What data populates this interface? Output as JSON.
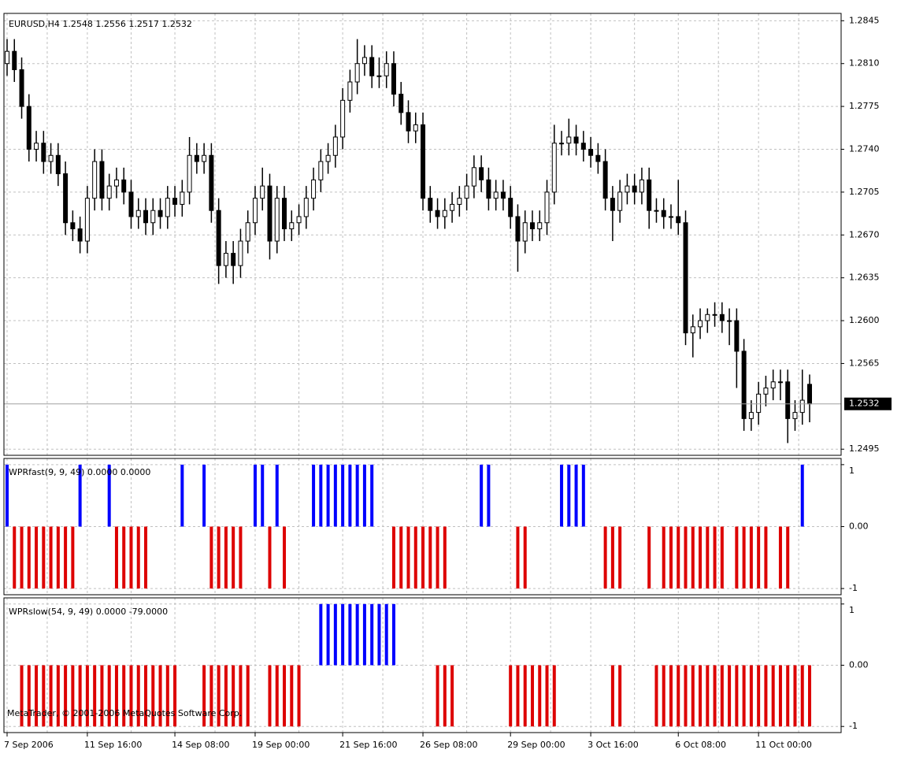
{
  "chart_data": [
    {
      "type": "candlestick",
      "title": "EURUSD,H4  1.2548 1.2556 1.2517 1.2532",
      "categories": [
        "7 Sep 2006",
        null,
        null,
        null,
        null,
        null,
        null,
        null,
        null,
        null,
        null,
        "11 Sep 16:00",
        null,
        null,
        null,
        null,
        null,
        null,
        null,
        null,
        null,
        null,
        null,
        "14 Sep 08:00",
        null,
        null,
        null,
        null,
        null,
        null,
        null,
        null,
        null,
        null,
        "19 Sep 00:00",
        null,
        null,
        null,
        null,
        null,
        null,
        null,
        null,
        null,
        null,
        null,
        "21 Sep 16:00",
        null,
        null,
        null,
        null,
        null,
        null,
        null,
        null,
        null,
        null,
        "26 Sep 08:00",
        null,
        null,
        null,
        null,
        null,
        null,
        null,
        null,
        null,
        null,
        null,
        "29 Sep 00:00",
        null,
        null,
        null,
        null,
        null,
        null,
        null,
        null,
        null,
        null,
        "3 Oct 16:00",
        null,
        null,
        null,
        null,
        null,
        null,
        null,
        null,
        null,
        null,
        null,
        "6 Oct 08:00",
        null,
        null,
        null,
        null,
        null,
        null,
        null,
        null,
        null,
        null,
        "11 Oct 00:00",
        null,
        null,
        null,
        null,
        null,
        null,
        null
      ],
      "ohlc": [
        [
          1.281,
          1.283,
          1.28,
          1.282
        ],
        [
          1.282,
          1.283,
          1.2795,
          1.2805
        ],
        [
          1.2805,
          1.2815,
          1.2765,
          1.2775
        ],
        [
          1.2775,
          1.2785,
          1.273,
          1.274
        ],
        [
          1.274,
          1.2755,
          1.273,
          1.2745
        ],
        [
          1.2745,
          1.2755,
          1.272,
          1.273
        ],
        [
          1.273,
          1.2745,
          1.272,
          1.2735
        ],
        [
          1.2735,
          1.2745,
          1.271,
          1.272
        ],
        [
          1.272,
          1.273,
          1.267,
          1.268
        ],
        [
          1.268,
          1.269,
          1.2665,
          1.2675
        ],
        [
          1.2675,
          1.2685,
          1.2655,
          1.2665
        ],
        [
          1.2665,
          1.271,
          1.2655,
          1.27
        ],
        [
          1.27,
          1.274,
          1.269,
          1.273
        ],
        [
          1.273,
          1.274,
          1.269,
          1.27
        ],
        [
          1.27,
          1.272,
          1.269,
          1.271
        ],
        [
          1.271,
          1.2725,
          1.27,
          1.2715
        ],
        [
          1.2715,
          1.2725,
          1.2695,
          1.2705
        ],
        [
          1.2705,
          1.2715,
          1.2675,
          1.2685
        ],
        [
          1.2685,
          1.27,
          1.2675,
          1.269
        ],
        [
          1.269,
          1.27,
          1.267,
          1.268
        ],
        [
          1.268,
          1.27,
          1.267,
          1.269
        ],
        [
          1.269,
          1.27,
          1.2675,
          1.2685
        ],
        [
          1.2685,
          1.271,
          1.2675,
          1.27
        ],
        [
          1.27,
          1.271,
          1.2685,
          1.2695
        ],
        [
          1.2695,
          1.2715,
          1.2685,
          1.2705
        ],
        [
          1.2705,
          1.275,
          1.2695,
          1.2735
        ],
        [
          1.2735,
          1.2745,
          1.272,
          1.273
        ],
        [
          1.273,
          1.2745,
          1.272,
          1.2735
        ],
        [
          1.2735,
          1.2745,
          1.268,
          1.269
        ],
        [
          1.269,
          1.27,
          1.263,
          1.2645
        ],
        [
          1.2645,
          1.2665,
          1.2635,
          1.2655
        ],
        [
          1.2655,
          1.2665,
          1.263,
          1.2645
        ],
        [
          1.2645,
          1.2675,
          1.2635,
          1.2665
        ],
        [
          1.2665,
          1.269,
          1.2655,
          1.268
        ],
        [
          1.268,
          1.271,
          1.267,
          1.27
        ],
        [
          1.27,
          1.2725,
          1.269,
          1.271
        ],
        [
          1.271,
          1.272,
          1.265,
          1.2665
        ],
        [
          1.2665,
          1.271,
          1.2655,
          1.27
        ],
        [
          1.27,
          1.271,
          1.2665,
          1.2675
        ],
        [
          1.2675,
          1.269,
          1.2665,
          1.268
        ],
        [
          1.268,
          1.2695,
          1.267,
          1.2685
        ],
        [
          1.2685,
          1.271,
          1.2675,
          1.27
        ],
        [
          1.27,
          1.2725,
          1.269,
          1.2715
        ],
        [
          1.2715,
          1.274,
          1.2705,
          1.273
        ],
        [
          1.273,
          1.2745,
          1.272,
          1.2735
        ],
        [
          1.2735,
          1.276,
          1.2725,
          1.275
        ],
        [
          1.275,
          1.279,
          1.274,
          1.278
        ],
        [
          1.278,
          1.2805,
          1.277,
          1.2795
        ],
        [
          1.2795,
          1.283,
          1.2785,
          1.281
        ],
        [
          1.281,
          1.2825,
          1.28,
          1.2815
        ],
        [
          1.2815,
          1.2825,
          1.279,
          1.28
        ],
        [
          1.28,
          1.2815,
          1.279,
          1.28
        ],
        [
          1.28,
          1.282,
          1.279,
          1.281
        ],
        [
          1.281,
          1.282,
          1.2775,
          1.2785
        ],
        [
          1.2785,
          1.2795,
          1.276,
          1.277
        ],
        [
          1.277,
          1.278,
          1.2745,
          1.2755
        ],
        [
          1.2755,
          1.277,
          1.2745,
          1.276
        ],
        [
          1.276,
          1.277,
          1.269,
          1.27
        ],
        [
          1.27,
          1.271,
          1.268,
          1.269
        ],
        [
          1.269,
          1.27,
          1.2675,
          1.2685
        ],
        [
          1.2685,
          1.27,
          1.2675,
          1.269
        ],
        [
          1.269,
          1.2705,
          1.268,
          1.2695
        ],
        [
          1.2695,
          1.271,
          1.2685,
          1.27
        ],
        [
          1.27,
          1.272,
          1.269,
          1.271
        ],
        [
          1.271,
          1.2735,
          1.27,
          1.2725
        ],
        [
          1.2725,
          1.2735,
          1.2705,
          1.2715
        ],
        [
          1.2715,
          1.2725,
          1.269,
          1.27
        ],
        [
          1.27,
          1.2715,
          1.269,
          1.2705
        ],
        [
          1.2705,
          1.2715,
          1.269,
          1.27
        ],
        [
          1.27,
          1.271,
          1.2675,
          1.2685
        ],
        [
          1.2685,
          1.2695,
          1.264,
          1.2665
        ],
        [
          1.2665,
          1.269,
          1.2655,
          1.268
        ],
        [
          1.268,
          1.269,
          1.2665,
          1.2675
        ],
        [
          1.2675,
          1.269,
          1.2665,
          1.268
        ],
        [
          1.268,
          1.2715,
          1.267,
          1.2705
        ],
        [
          1.2705,
          1.276,
          1.2695,
          1.2745
        ],
        [
          1.2745,
          1.2755,
          1.2735,
          1.2745
        ],
        [
          1.2745,
          1.2765,
          1.2735,
          1.275
        ],
        [
          1.275,
          1.276,
          1.2735,
          1.2745
        ],
        [
          1.2745,
          1.2755,
          1.273,
          1.274
        ],
        [
          1.274,
          1.275,
          1.2725,
          1.2735
        ],
        [
          1.2735,
          1.2745,
          1.272,
          1.273
        ],
        [
          1.273,
          1.274,
          1.269,
          1.27
        ],
        [
          1.27,
          1.271,
          1.2665,
          1.269
        ],
        [
          1.269,
          1.2715,
          1.268,
          1.2705
        ],
        [
          1.2705,
          1.272,
          1.2695,
          1.271
        ],
        [
          1.271,
          1.272,
          1.2695,
          1.2705
        ],
        [
          1.2705,
          1.2725,
          1.2695,
          1.2715
        ],
        [
          1.2715,
          1.2725,
          1.2675,
          1.269
        ],
        [
          1.269,
          1.27,
          1.268,
          1.269
        ],
        [
          1.269,
          1.27,
          1.2675,
          1.2685
        ],
        [
          1.2685,
          1.2695,
          1.2675,
          1.2685
        ],
        [
          1.2685,
          1.2715,
          1.267,
          1.268
        ],
        [
          1.268,
          1.269,
          1.258,
          1.259
        ],
        [
          1.259,
          1.2605,
          1.257,
          1.2595
        ],
        [
          1.2595,
          1.261,
          1.2585,
          1.26
        ],
        [
          1.26,
          1.261,
          1.259,
          1.2605
        ],
        [
          1.2605,
          1.2615,
          1.2595,
          1.2605
        ],
        [
          1.2605,
          1.2615,
          1.259,
          1.26
        ],
        [
          1.26,
          1.261,
          1.258,
          1.26
        ],
        [
          1.26,
          1.261,
          1.2545,
          1.2575
        ],
        [
          1.2575,
          1.2585,
          1.251,
          1.252
        ],
        [
          1.252,
          1.2535,
          1.251,
          1.2525
        ],
        [
          1.2525,
          1.255,
          1.2515,
          1.254
        ],
        [
          1.254,
          1.2555,
          1.253,
          1.2545
        ],
        [
          1.2545,
          1.256,
          1.2535,
          1.255
        ],
        [
          1.255,
          1.256,
          1.2535,
          1.255
        ],
        [
          1.255,
          1.256,
          1.25,
          1.252
        ],
        [
          1.252,
          1.2535,
          1.251,
          1.2525
        ],
        [
          1.2525,
          1.256,
          1.2515,
          1.2535
        ],
        [
          1.2548,
          1.2556,
          1.2517,
          1.2532
        ]
      ],
      "ylim": [
        1.249,
        1.2851
      ],
      "yticks": [
        1.2845,
        {
          "value": 1.281,
          "label": "1.2810"
        },
        1.2775,
        {
          "value": 1.274,
          "label": "1.2740"
        },
        1.2705,
        {
          "value": 1.267,
          "label": "1.2670"
        },
        1.2635,
        {
          "value": 1.26,
          "label": "1.2600"
        },
        1.2565,
        1.2495
      ],
      "last": 1.2532,
      "grid": true
    },
    {
      "type": "bar",
      "title": "WPRfast(9, 9, 49) 0.0000 0.0000",
      "values": [
        1,
        -1,
        -1,
        -1,
        -1,
        -1,
        -1,
        -1,
        -1,
        -1,
        1,
        0,
        0,
        0,
        1,
        -1,
        -1,
        -1,
        -1,
        -1,
        0,
        0,
        0,
        0,
        1,
        0,
        0,
        1,
        -1,
        -1,
        -1,
        -1,
        -1,
        0,
        1,
        1,
        -1,
        1,
        -1,
        0,
        0,
        0,
        1,
        1,
        1,
        1,
        1,
        1,
        1,
        1,
        1,
        0,
        0,
        -1,
        -1,
        -1,
        -1,
        -1,
        -1,
        -1,
        -1,
        0,
        0,
        0,
        0,
        1,
        1,
        0,
        0,
        0,
        -1,
        -1,
        0,
        0,
        0,
        0,
        1,
        1,
        1,
        1,
        0,
        0,
        -1,
        -1,
        -1,
        0,
        0,
        0,
        -1,
        0,
        -1,
        -1,
        -1,
        -1,
        -1,
        -1,
        -1,
        -1,
        -1,
        0,
        -1,
        -1,
        -1,
        -1,
        -1,
        0,
        -1,
        -1,
        0,
        1,
        0
      ],
      "colors": {
        "up": "#0000ff",
        "down": "#dd0000"
      },
      "ylim": [
        -1.1,
        1.1
      ],
      "yticks": [
        1,
        {
          "value": 0,
          "label": "0.00"
        },
        -1
      ]
    },
    {
      "type": "bar",
      "title": "WPRslow(54, 9, 49) 0.0000 -79.0000",
      "annotation": "MetaTrader, © 2001-2006 MetaQuotes Software Corp.",
      "values": [
        0,
        0,
        -1,
        -1,
        -1,
        -1,
        -1,
        -1,
        -1,
        -1,
        -1,
        -1,
        -1,
        -1,
        -1,
        -1,
        -1,
        -1,
        -1,
        -1,
        -1,
        -1,
        -1,
        -1,
        0,
        0,
        0,
        -1,
        -1,
        -1,
        -1,
        -1,
        -1,
        -1,
        0,
        0,
        -1,
        -1,
        -1,
        -1,
        -1,
        0,
        0,
        1,
        1,
        1,
        1,
        1,
        1,
        1,
        1,
        1,
        1,
        1,
        0,
        0,
        0,
        0,
        0,
        -1,
        -1,
        -1,
        0,
        0,
        0,
        0,
        0,
        0,
        0,
        -1,
        -1,
        -1,
        -1,
        -1,
        -1,
        -1,
        0,
        0,
        0,
        0,
        0,
        0,
        0,
        -1,
        -1,
        0,
        0,
        0,
        0,
        -1,
        -1,
        -1,
        -1,
        -1,
        -1,
        -1,
        -1,
        -1,
        -1,
        -1,
        -1,
        -1,
        -1,
        -1,
        -1,
        -1,
        -1,
        -1,
        -1,
        -1,
        -1
      ],
      "colors": {
        "up": "#0000ff",
        "down": "#dd0000"
      },
      "ylim": [
        -1.1,
        1.1
      ],
      "yticks": [
        1,
        {
          "value": 0,
          "label": "0.00"
        },
        -1
      ]
    }
  ]
}
